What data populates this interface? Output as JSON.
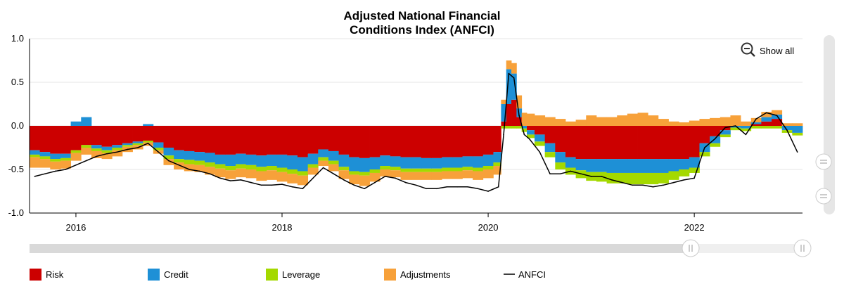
{
  "chart_data": {
    "type": "bar",
    "title": "Adjusted National Financial",
    "title_line2": "Conditions Index (ANFCI)",
    "xlabel": "",
    "ylabel": "",
    "stacked": true,
    "ylim": [
      -1.0,
      1.0
    ],
    "yticks": [
      "1.0",
      "0.5",
      "0.0",
      "-0.5",
      "-1.0"
    ],
    "xlim": [
      2015.55,
      2023.05
    ],
    "xticks": [
      {
        "value": 2016,
        "label": "2016"
      },
      {
        "value": 2018,
        "label": "2018"
      },
      {
        "value": 2020,
        "label": "2020"
      },
      {
        "value": 2022,
        "label": "2022"
      }
    ],
    "grid": "horizontal",
    "legend_position": "bottom",
    "x": [
      2015.6,
      2015.7,
      2015.8,
      2015.9,
      2016.0,
      2016.1,
      2016.2,
      2016.3,
      2016.4,
      2016.5,
      2016.6,
      2016.7,
      2016.8,
      2016.9,
      2017.0,
      2017.1,
      2017.2,
      2017.3,
      2017.4,
      2017.5,
      2017.6,
      2017.7,
      2017.8,
      2017.9,
      2018.0,
      2018.1,
      2018.2,
      2018.3,
      2018.4,
      2018.5,
      2018.6,
      2018.7,
      2018.8,
      2018.9,
      2019.0,
      2019.1,
      2019.2,
      2019.3,
      2019.4,
      2019.5,
      2019.6,
      2019.7,
      2019.8,
      2019.9,
      2020.0,
      2020.1,
      2020.15,
      2020.2,
      2020.25,
      2020.3,
      2020.35,
      2020.4,
      2020.5,
      2020.6,
      2020.7,
      2020.8,
      2020.9,
      2021.0,
      2021.1,
      2021.2,
      2021.3,
      2021.4,
      2021.5,
      2021.6,
      2021.7,
      2021.8,
      2021.9,
      2022.0,
      2022.1,
      2022.2,
      2022.3,
      2022.4,
      2022.5,
      2022.6,
      2022.7,
      2022.8,
      2022.9,
      2023.0
    ],
    "series": [
      {
        "name": "Risk",
        "color": "#cc0000",
        "values": [
          -0.28,
          -0.3,
          -0.32,
          -0.32,
          -0.28,
          -0.22,
          -0.22,
          -0.24,
          -0.22,
          -0.2,
          -0.18,
          -0.17,
          -0.19,
          -0.25,
          -0.28,
          -0.29,
          -0.3,
          -0.31,
          -0.33,
          -0.33,
          -0.32,
          -0.33,
          -0.34,
          -0.33,
          -0.33,
          -0.34,
          -0.36,
          -0.32,
          -0.27,
          -0.29,
          -0.33,
          -0.36,
          -0.37,
          -0.36,
          -0.34,
          -0.35,
          -0.36,
          -0.36,
          -0.37,
          -0.37,
          -0.36,
          -0.36,
          -0.35,
          -0.35,
          -0.33,
          -0.3,
          0.05,
          0.25,
          0.3,
          0.1,
          0.0,
          -0.05,
          -0.1,
          -0.2,
          -0.3,
          -0.36,
          -0.38,
          -0.38,
          -0.38,
          -0.38,
          -0.38,
          -0.38,
          -0.38,
          -0.38,
          -0.38,
          -0.38,
          -0.38,
          -0.36,
          -0.2,
          -0.12,
          -0.05,
          0.0,
          0.0,
          0.02,
          0.05,
          0.08,
          0.0,
          0.0
        ]
      },
      {
        "name": "Credit",
        "color": "#1e90d6",
        "values": [
          -0.05,
          -0.05,
          -0.06,
          -0.05,
          0.05,
          0.1,
          -0.04,
          -0.04,
          -0.03,
          -0.02,
          -0.02,
          0.02,
          -0.06,
          -0.09,
          -0.1,
          -0.1,
          -0.1,
          -0.11,
          -0.11,
          -0.13,
          -0.12,
          -0.12,
          -0.13,
          -0.13,
          -0.15,
          -0.16,
          -0.16,
          -0.12,
          -0.09,
          -0.11,
          -0.14,
          -0.16,
          -0.16,
          -0.14,
          -0.12,
          -0.12,
          -0.13,
          -0.13,
          -0.12,
          -0.12,
          -0.12,
          -0.12,
          -0.12,
          -0.13,
          -0.13,
          -0.12,
          0.2,
          0.4,
          0.3,
          0.1,
          -0.03,
          -0.05,
          -0.08,
          -0.1,
          -0.12,
          -0.12,
          -0.13,
          -0.15,
          -0.15,
          -0.16,
          -0.16,
          -0.16,
          -0.16,
          -0.16,
          -0.16,
          -0.14,
          -0.12,
          -0.12,
          -0.1,
          -0.08,
          -0.05,
          -0.02,
          -0.03,
          0.02,
          0.05,
          0.05,
          -0.05,
          -0.08
        ]
      },
      {
        "name": "Leverage",
        "color": "#a4d900",
        "values": [
          -0.03,
          -0.03,
          -0.03,
          -0.03,
          -0.03,
          -0.03,
          -0.03,
          -0.03,
          -0.03,
          -0.02,
          -0.02,
          -0.02,
          -0.03,
          -0.04,
          -0.04,
          -0.05,
          -0.05,
          -0.05,
          -0.05,
          -0.05,
          -0.05,
          -0.05,
          -0.05,
          -0.05,
          -0.05,
          -0.05,
          -0.05,
          -0.04,
          -0.04,
          -0.04,
          -0.04,
          -0.04,
          -0.04,
          -0.04,
          -0.04,
          -0.04,
          -0.04,
          -0.04,
          -0.04,
          -0.04,
          -0.04,
          -0.04,
          -0.04,
          -0.04,
          -0.04,
          -0.04,
          -0.03,
          -0.03,
          -0.03,
          -0.03,
          -0.04,
          -0.04,
          -0.05,
          -0.06,
          -0.08,
          -0.08,
          -0.09,
          -0.1,
          -0.11,
          -0.12,
          -0.12,
          -0.13,
          -0.13,
          -0.13,
          -0.12,
          -0.1,
          -0.08,
          -0.06,
          -0.05,
          -0.04,
          -0.03,
          -0.03,
          -0.03,
          -0.03,
          -0.03,
          -0.03,
          -0.03,
          -0.03
        ]
      },
      {
        "name": "Adjustments",
        "color": "#f7a13a",
        "values": [
          -0.12,
          -0.1,
          -0.09,
          -0.09,
          -0.09,
          -0.08,
          -0.08,
          -0.07,
          -0.07,
          -0.06,
          -0.05,
          -0.04,
          -0.04,
          -0.07,
          -0.08,
          -0.08,
          -0.08,
          -0.09,
          -0.1,
          -0.1,
          -0.1,
          -0.1,
          -0.11,
          -0.11,
          -0.11,
          -0.11,
          -0.11,
          -0.08,
          -0.06,
          -0.08,
          -0.1,
          -0.11,
          -0.12,
          -0.1,
          -0.08,
          -0.08,
          -0.09,
          -0.09,
          -0.09,
          -0.09,
          -0.09,
          -0.09,
          -0.09,
          -0.1,
          -0.1,
          -0.1,
          0.05,
          0.1,
          0.12,
          0.15,
          0.15,
          0.14,
          0.12,
          0.1,
          0.08,
          0.05,
          0.07,
          0.12,
          0.1,
          0.1,
          0.12,
          0.14,
          0.15,
          0.12,
          0.08,
          0.05,
          0.04,
          0.06,
          0.08,
          0.09,
          0.1,
          0.12,
          0.05,
          0.05,
          0.06,
          0.05,
          0.03,
          0.03
        ]
      },
      {
        "name": "ANFCI",
        "color": "#000000",
        "type": "line",
        "values": [
          -0.58,
          -0.55,
          -0.52,
          -0.5,
          -0.45,
          -0.4,
          -0.35,
          -0.32,
          -0.3,
          -0.27,
          -0.25,
          -0.2,
          -0.3,
          -0.4,
          -0.45,
          -0.5,
          -0.52,
          -0.55,
          -0.6,
          -0.63,
          -0.62,
          -0.65,
          -0.68,
          -0.68,
          -0.67,
          -0.7,
          -0.72,
          -0.6,
          -0.48,
          -0.55,
          -0.62,
          -0.68,
          -0.72,
          -0.65,
          -0.58,
          -0.6,
          -0.65,
          -0.68,
          -0.72,
          -0.72,
          -0.7,
          -0.7,
          -0.7,
          -0.72,
          -0.75,
          -0.7,
          -0.1,
          0.6,
          0.55,
          0.12,
          -0.1,
          -0.15,
          -0.3,
          -0.55,
          -0.55,
          -0.52,
          -0.55,
          -0.58,
          -0.58,
          -0.62,
          -0.65,
          -0.68,
          -0.68,
          -0.7,
          -0.68,
          -0.65,
          -0.62,
          -0.6,
          -0.25,
          -0.15,
          -0.02,
          0.0,
          -0.1,
          0.08,
          0.15,
          0.12,
          -0.05,
          -0.3
        ]
      }
    ]
  },
  "controls": {
    "show_all_label": "Show all",
    "zoom_icon": "zoom-out-icon",
    "navigator_handle_icon": "double-bar-grip"
  },
  "colors": {
    "grid": "#e6e6e6",
    "navigator_track": "#d9d9d9",
    "navigator_selected": "#efefef",
    "handle_fill": "#ffffff",
    "handle_stroke": "#cccccc"
  }
}
